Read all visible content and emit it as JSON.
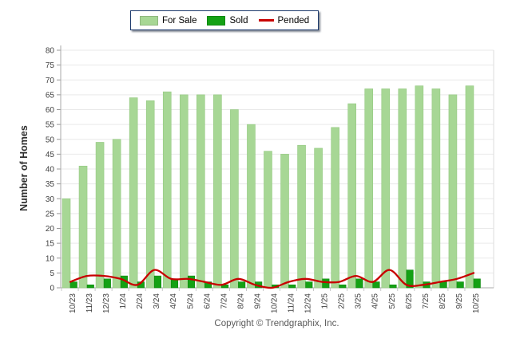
{
  "legend": {
    "items": [
      {
        "label": "For Sale",
        "type": "swatch",
        "color": "#a7d795"
      },
      {
        "label": "Sold",
        "type": "swatch",
        "color": "#14a114"
      },
      {
        "label": "Pended",
        "type": "line",
        "color": "#c80000"
      }
    ]
  },
  "footer": {
    "text": "Copyright © Trendgraphix, Inc."
  },
  "chart_data": {
    "type": "bar+line",
    "title": "",
    "xlabel": "",
    "ylabel": "Number of Homes",
    "ylim": [
      0,
      80
    ],
    "ytick_step": 5,
    "grid": true,
    "legend_position": "top-center",
    "categories": [
      "10/23",
      "11/23",
      "12/23",
      "1/24",
      "2/24",
      "3/24",
      "4/24",
      "5/24",
      "6/24",
      "7/24",
      "8/24",
      "9/24",
      "10/24",
      "11/24",
      "12/24",
      "1/25",
      "2/25",
      "3/25",
      "4/25",
      "5/25",
      "6/25",
      "7/25",
      "8/25",
      "9/25",
      "10/25"
    ],
    "series": [
      {
        "name": "For Sale",
        "type": "bar",
        "color": "#a7d795",
        "edge_color": "#95c982",
        "values": [
          30,
          41,
          49,
          50,
          64,
          63,
          66,
          65,
          65,
          65,
          60,
          55,
          46,
          45,
          48,
          47,
          54,
          62,
          67,
          67,
          67,
          68,
          67,
          65,
          68
        ]
      },
      {
        "name": "Sold",
        "type": "bar",
        "color": "#14a114",
        "edge_color": "#0d870d",
        "values": [
          2,
          1,
          3,
          4,
          2,
          4,
          3,
          4,
          2,
          1,
          2,
          2,
          1,
          1,
          2,
          3,
          1,
          3,
          2,
          1,
          6,
          2,
          2,
          2,
          3
        ]
      },
      {
        "name": "Pended",
        "type": "line",
        "color": "#c80000",
        "values": [
          2,
          4,
          4,
          3,
          1,
          6,
          3,
          3,
          2,
          1,
          3,
          1,
          0,
          2,
          3,
          2,
          2,
          4,
          2,
          6,
          1,
          1,
          2,
          3,
          5
        ]
      }
    ],
    "colors": {
      "gridline": "#e9e9e9",
      "axis": "#aaaaaa",
      "tick": "#999999",
      "tick_label": "#3f3f3f",
      "plot_right_border": "#dddddd"
    }
  }
}
